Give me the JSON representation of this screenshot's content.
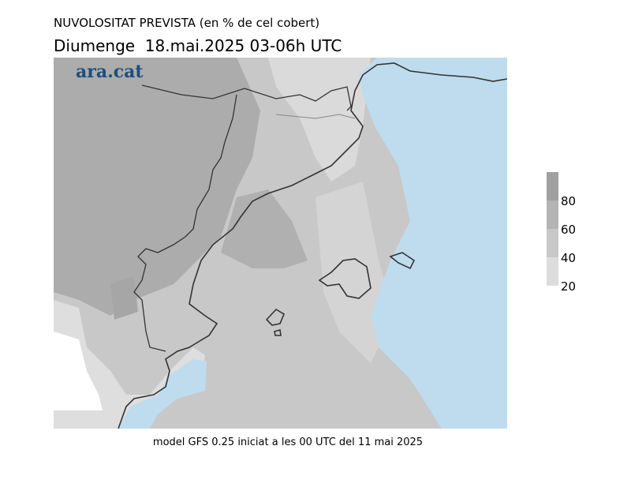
{
  "title": "NUVOLOSITAT PREVISTA (en % de cel cobert)",
  "subtitle": "Diumenge  18.mai.2025 03-06h UTC",
  "logo": "ara.cat",
  "footer": "model GFS 0.25 iniciat a les 00 UTC del 11 mai 2025",
  "colorbar": {
    "range": [
      20,
      100
    ],
    "ticks": [
      20,
      40,
      60,
      80
    ],
    "colors": [
      "#dcdcdc",
      "#c8c8c8",
      "#b4b4b4",
      "#a0a0a0"
    ]
  }
}
